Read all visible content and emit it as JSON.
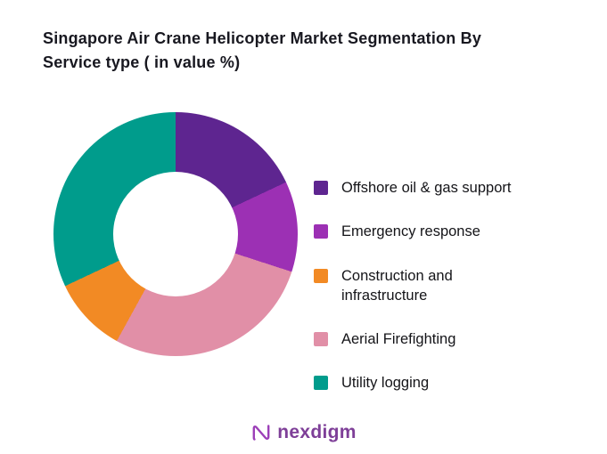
{
  "title_display": "Singapore Air Crane Helicopter Market Segmentation By\nService type ( in value %)",
  "chart_data": {
    "type": "pie",
    "subtype": "donut",
    "title": "Singapore Air Crane Helicopter Market Segmentation By Service type ( in value %)",
    "unit": "value %",
    "values_labeled_on_chart": false,
    "values_are_estimates": true,
    "segments_clockwise_from_top": [
      {
        "label": "Offshore oil & gas support",
        "value": 18,
        "color": "#5E2590"
      },
      {
        "label": "Emergency response",
        "value": 12,
        "color": "#9C30B4"
      },
      {
        "label": "Aerial Firefighting",
        "value": 28,
        "color": "#E18FA7"
      },
      {
        "label": "Construction and infrastructure",
        "value": 10,
        "color": "#F28A24"
      },
      {
        "label": "Utility logging",
        "value": 32,
        "color": "#009C8C"
      }
    ],
    "legend_position": "right"
  },
  "legend": {
    "items": [
      {
        "label": "Offshore oil & gas support",
        "color": "#5E2590"
      },
      {
        "label": "Emergency response",
        "color": "#9C30B4"
      },
      {
        "label": "Construction and\ninfrastructure",
        "color": "#F28A24"
      },
      {
        "label": "Aerial Firefighting",
        "color": "#E18FA7"
      },
      {
        "label": "Utility logging",
        "color": "#009C8C"
      }
    ]
  },
  "logo": {
    "text": "nexdigm",
    "text_color": "#7E3F98",
    "icon_color": "#9C3FB8"
  }
}
